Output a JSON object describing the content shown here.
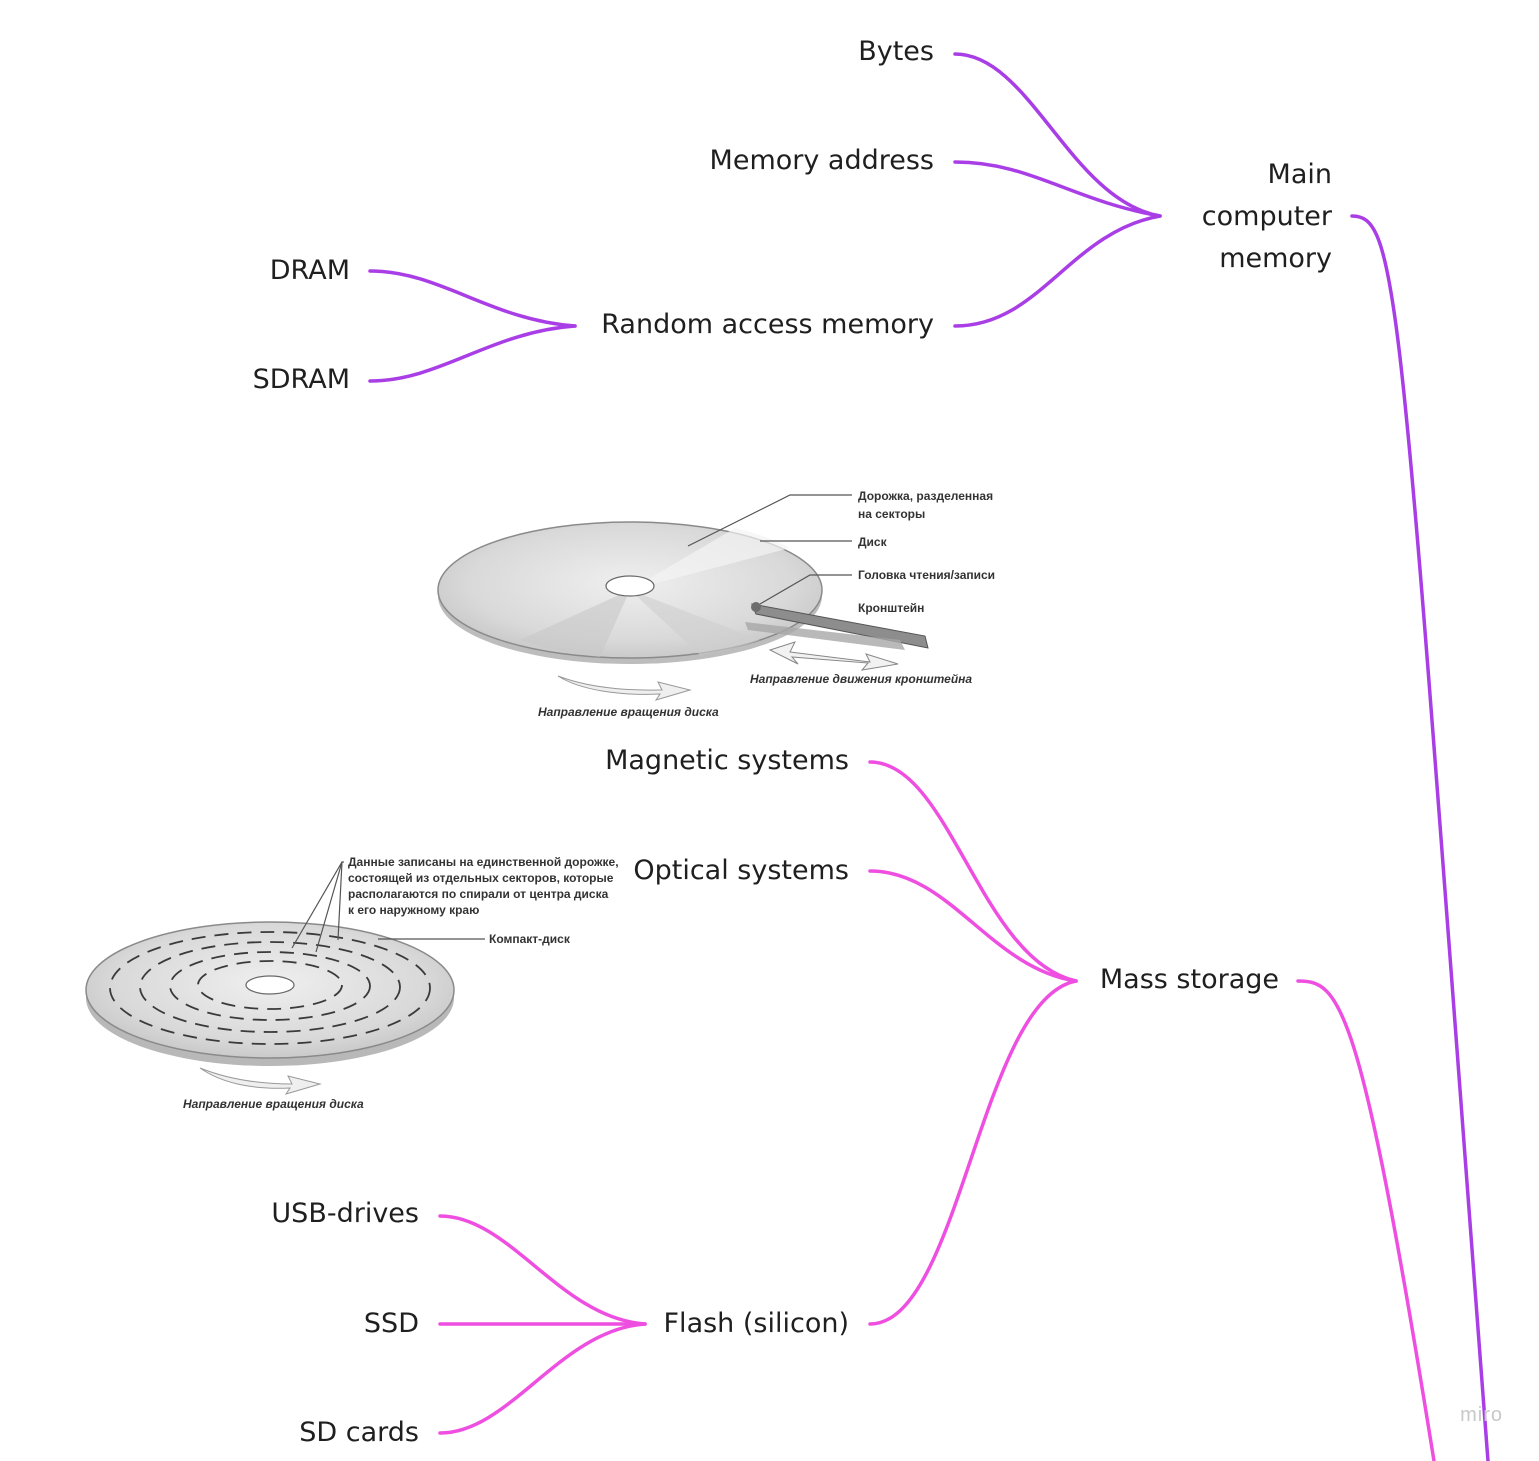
{
  "colors": {
    "purple": "#a93ee6",
    "pink": "#ee4fe0"
  },
  "nodes": {
    "main_memory": [
      "Main",
      "computer",
      "memory"
    ],
    "bytes": "Bytes",
    "memory_address": "Memory address",
    "ram": "Random access memory",
    "dram": "DRAM",
    "sdram": "SDRAM",
    "mass_storage": "Mass storage",
    "magnetic": "Magnetic systems",
    "optical": "Optical systems",
    "flash": "Flash (silicon)",
    "usb": "USB-drives",
    "ssd": "SSD",
    "sd_cards": "SD cards"
  },
  "figures": {
    "hdd": {
      "track_label": [
        "Дорожка, разделенная",
        "на секторы"
      ],
      "disk_label": "Диск",
      "head_label": "Головка чтения/записи",
      "arm_label": "Кронштейн",
      "arm_direction": "Направление движения кронштейна",
      "rotation": "Направление вращения диска"
    },
    "cd": {
      "data_label": [
        "Данные записаны на единственной дорожке,",
        "состоящей из отдельных секторов, которые",
        "располагаются по спирали от центра диска",
        "к его наружному краю"
      ],
      "cd_label": "Компакт-диск",
      "rotation": "Направление вращения диска"
    }
  },
  "watermark": "miro"
}
